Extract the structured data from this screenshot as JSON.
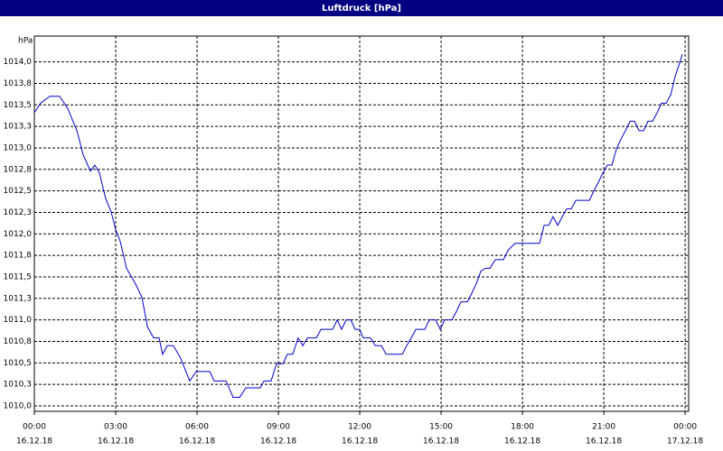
{
  "chart_data": {
    "type": "line",
    "title": "Luftdruck [hPa]",
    "y_label": "hPa",
    "x": [
      0,
      0.23,
      0.57,
      0.93,
      1.23,
      1.57,
      1.8,
      2.07,
      2.23,
      2.4,
      2.63,
      2.83,
      3,
      3.17,
      3.4,
      3.73,
      3.97,
      4.17,
      4.4,
      4.6,
      4.73,
      4.9,
      5.13,
      5.4,
      5.73,
      5.97,
      6.47,
      6.63,
      7.07,
      7.33,
      7.57,
      7.8,
      8.33,
      8.47,
      8.73,
      8.93,
      9.17,
      9.33,
      9.53,
      9.73,
      9.9,
      10.07,
      10.4,
      10.57,
      11,
      11.17,
      11.33,
      11.5,
      11.67,
      11.83,
      12,
      12.13,
      12.4,
      12.57,
      12.8,
      12.97,
      13.57,
      13.73,
      13.9,
      14.07,
      14.4,
      14.57,
      14.8,
      14.97,
      15.13,
      15.4,
      15.57,
      15.73,
      15.97,
      16.13,
      16.3,
      16.47,
      16.63,
      16.8,
      17,
      17.3,
      17.47,
      17.73,
      18.63,
      18.8,
      18.97,
      19.13,
      19.3,
      19.47,
      19.63,
      19.8,
      19.97,
      20.47,
      20.63,
      20.8,
      20.97,
      21.13,
      21.3,
      21.47,
      21.63,
      21.8,
      21.97,
      22.13,
      22.3,
      22.47,
      22.63,
      22.8,
      22.97,
      23.13,
      23.3,
      23.47,
      23.63,
      23.8,
      23.9
    ],
    "series": [
      {
        "name": "Luftdruck",
        "color": "#0000cc",
        "values": [
          1013.41,
          1013.52,
          1013.6,
          1013.6,
          1013.46,
          1013.2,
          1012.92,
          1012.73,
          1012.8,
          1012.71,
          1012.41,
          1012.26,
          1012.05,
          1011.91,
          1011.6,
          1011.42,
          1011.26,
          1010.92,
          1010.79,
          1010.79,
          1010.6,
          1010.7,
          1010.7,
          1010.55,
          1010.29,
          1010.4,
          1010.4,
          1010.29,
          1010.29,
          1010.1,
          1010.1,
          1010.21,
          1010.21,
          1010.29,
          1010.29,
          1010.49,
          1010.49,
          1010.6,
          1010.6,
          1010.79,
          1010.7,
          1010.79,
          1010.79,
          1010.89,
          1010.89,
          1011,
          1010.89,
          1011,
          1011,
          1010.89,
          1010.89,
          1010.79,
          1010.79,
          1010.7,
          1010.7,
          1010.6,
          1010.6,
          1010.7,
          1010.79,
          1010.89,
          1010.89,
          1011,
          1011,
          1010.89,
          1011,
          1011,
          1011.1,
          1011.21,
          1011.21,
          1011.31,
          1011.42,
          1011.57,
          1011.6,
          1011.6,
          1011.7,
          1011.7,
          1011.81,
          1011.89,
          1011.89,
          1012.1,
          1012.1,
          1012.2,
          1012.1,
          1012.2,
          1012.29,
          1012.29,
          1012.39,
          1012.39,
          1012.5,
          1012.6,
          1012.71,
          1012.8,
          1012.8,
          1012.99,
          1013.1,
          1013.2,
          1013.31,
          1013.31,
          1013.2,
          1013.2,
          1013.31,
          1013.31,
          1013.41,
          1013.52,
          1013.52,
          1013.62,
          1013.83,
          1013.99,
          1014.09
        ]
      }
    ],
    "xlim": [
      0,
      24.13
    ],
    "ylim": [
      1009.937,
      1014.3
    ],
    "xticks": [
      {
        "value": 0,
        "label": "00:00",
        "date": "16.12.18"
      },
      {
        "value": 3,
        "label": "03:00",
        "date": "16.12.18"
      },
      {
        "value": 6,
        "label": "06:00",
        "date": "16.12.18"
      },
      {
        "value": 9,
        "label": "09:00",
        "date": "16.12.18"
      },
      {
        "value": 12,
        "label": "12:00",
        "date": "16.12.18"
      },
      {
        "value": 15,
        "label": "15:00",
        "date": "16.12.18"
      },
      {
        "value": 18,
        "label": "18:00",
        "date": "16.12.18"
      },
      {
        "value": 21,
        "label": "21:00",
        "date": "16.12.18"
      },
      {
        "value": 24,
        "label": "00:00",
        "date": "17.12.18"
      }
    ],
    "yticks": [
      {
        "value": 1010,
        "label": "1010,0"
      },
      {
        "value": 1010.25,
        "label": "1010,3"
      },
      {
        "value": 1010.5,
        "label": "1010,5"
      },
      {
        "value": 1010.75,
        "label": "1010,8"
      },
      {
        "value": 1011,
        "label": "1011,0"
      },
      {
        "value": 1011.25,
        "label": "1011,3"
      },
      {
        "value": 1011.5,
        "label": "1011,5"
      },
      {
        "value": 1011.75,
        "label": "1011,8"
      },
      {
        "value": 1012,
        "label": "1012,0"
      },
      {
        "value": 1012.25,
        "label": "1012,3"
      },
      {
        "value": 1012.5,
        "label": "1012,5"
      },
      {
        "value": 1012.75,
        "label": "1012,8"
      },
      {
        "value": 1013,
        "label": "1013,0"
      },
      {
        "value": 1013.25,
        "label": "1013,3"
      },
      {
        "value": 1013.5,
        "label": "1013,5"
      },
      {
        "value": 1013.75,
        "label": "1013,8"
      },
      {
        "value": 1014,
        "label": "1014,0"
      }
    ],
    "grid": true
  }
}
